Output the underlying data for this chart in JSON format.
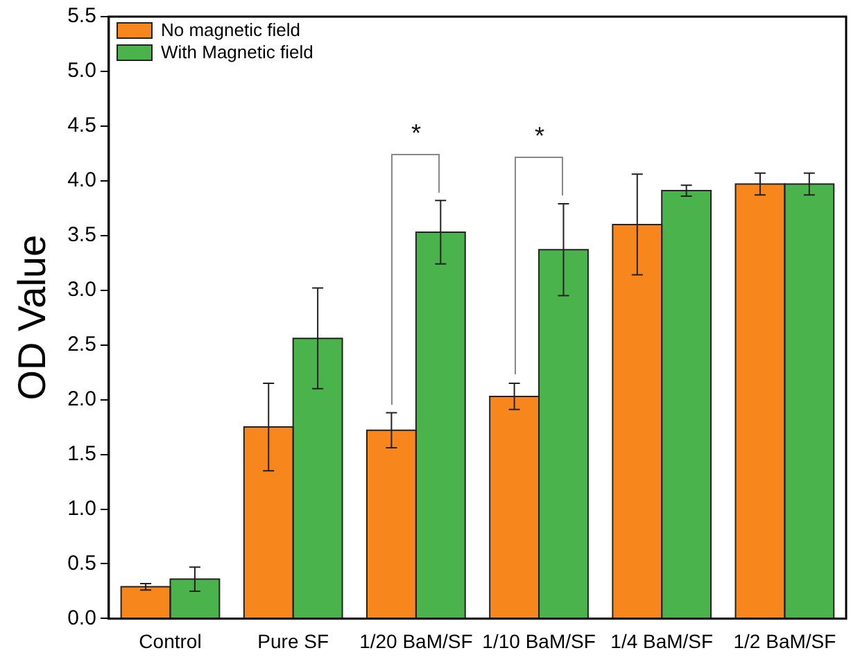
{
  "chart_data": {
    "type": "bar",
    "ylabel": "OD Value",
    "categories": [
      "Control",
      "Pure SF",
      "1/20 BaM/SF",
      "1/10 BaM/SF",
      "1/4 BaM/SF",
      "1/2 BaM/SF"
    ],
    "series": [
      {
        "name": "No magnetic field",
        "color": "#f7861c",
        "values": [
          0.29,
          1.75,
          1.72,
          2.03,
          3.6,
          3.97
        ],
        "errors": [
          0.03,
          0.4,
          0.16,
          0.12,
          0.46,
          0.1
        ]
      },
      {
        "name": "With Magnetic field",
        "color": "#4bb34b",
        "values": [
          0.36,
          2.56,
          3.53,
          3.37,
          3.91,
          3.97
        ],
        "errors": [
          0.11,
          0.46,
          0.29,
          0.42,
          0.05,
          0.1
        ]
      }
    ],
    "ylim": [
      0,
      5.5
    ],
    "yticks": [
      {
        "value": 0,
        "label": "0.0"
      },
      {
        "value": 0.5,
        "label": "0.5"
      },
      {
        "value": 1,
        "label": "1.0"
      },
      {
        "value": 1.5,
        "label": "1.5"
      },
      {
        "value": 2,
        "label": "2.0"
      },
      {
        "value": 2.5,
        "label": "2.5"
      },
      {
        "value": 3,
        "label": "3.0"
      },
      {
        "value": 3.5,
        "label": "3.5"
      },
      {
        "value": 4,
        "label": "4.0"
      },
      {
        "value": 4.5,
        "label": "4.5"
      },
      {
        "value": 5,
        "label": "5.0"
      },
      {
        "value": 5.5,
        "label": "5.5"
      }
    ],
    "annotations": [
      "*",
      "*"
    ],
    "legend": "top left",
    "grid": false
  }
}
